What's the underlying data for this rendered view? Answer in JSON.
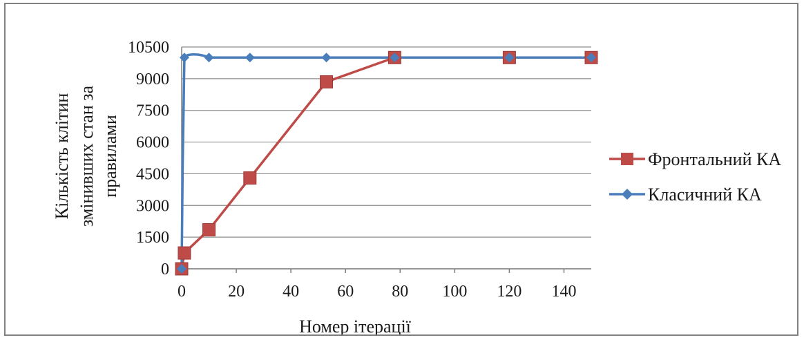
{
  "chart_data": {
    "type": "line",
    "title": "",
    "xlabel": "Номер ітерації",
    "ylabel_lines": [
      "Кількість клітин",
      "змінивших стан за",
      "правилами"
    ],
    "xlim": [
      0,
      150
    ],
    "ylim": [
      0,
      10500
    ],
    "xticks": [
      0,
      20,
      40,
      60,
      80,
      100,
      120,
      140
    ],
    "yticks": [
      0,
      1500,
      3000,
      4500,
      6000,
      7500,
      9000,
      10500
    ],
    "grid": "horizontal",
    "legend_position": "right",
    "series": [
      {
        "name": "Фронтальний КА",
        "color": "#be4b48",
        "marker": "square",
        "smooth": false,
        "x": [
          0,
          1,
          10,
          25,
          53,
          78,
          120,
          150
        ],
        "y": [
          0,
          750,
          1850,
          4300,
          8850,
          10000,
          10000,
          10000
        ]
      },
      {
        "name": "Класичний КА",
        "color": "#4a7ebb",
        "marker": "diamond",
        "smooth": true,
        "x": [
          0,
          1,
          10,
          25,
          53,
          78,
          120,
          150
        ],
        "y": [
          0,
          10000,
          10000,
          10000,
          10000,
          10000,
          10000,
          10000
        ]
      }
    ]
  }
}
